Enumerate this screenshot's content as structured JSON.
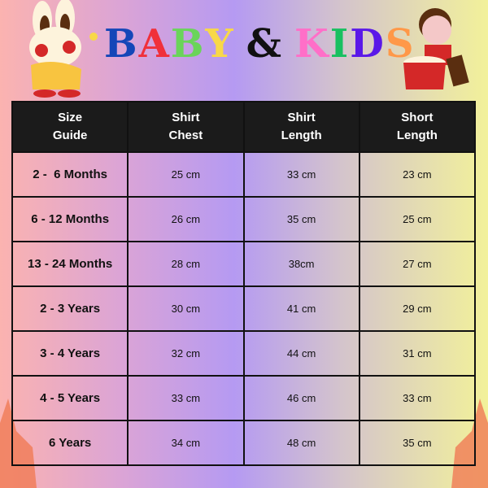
{
  "title": {
    "letters": [
      "B",
      "A",
      "B",
      "Y",
      " ",
      "&",
      " ",
      "K",
      "I",
      "D",
      "S"
    ],
    "colors": [
      "#1446b8",
      "#f0303a",
      "#6ad45a",
      "#f8d848",
      "",
      "#111111",
      "",
      "#ff6fc8",
      "#18c060",
      "#5a18e8",
      "#ff9848"
    ]
  },
  "table": {
    "headers": [
      [
        "Size",
        "Guide"
      ],
      [
        "Shirt",
        "Chest"
      ],
      [
        "Shirt",
        "Length"
      ],
      [
        "Short",
        "Length"
      ]
    ],
    "rows": [
      [
        "2 -  6 Months",
        "25 cm",
        "33 cm",
        "23 cm"
      ],
      [
        "6 - 12 Months",
        "26 cm",
        "35 cm",
        "25 cm"
      ],
      [
        "13 - 24 Months",
        "28 cm",
        "38cm",
        "27 cm"
      ],
      [
        "2 - 3 Years",
        "30 cm",
        "41 cm",
        "29 cm"
      ],
      [
        "3 - 4 Years",
        "32 cm",
        "44 cm",
        "31 cm"
      ],
      [
        "4 - 5 Years",
        "33 cm",
        "46 cm",
        "33 cm"
      ],
      [
        "6 Years",
        "34 cm",
        "48 cm",
        "35 cm"
      ]
    ]
  }
}
